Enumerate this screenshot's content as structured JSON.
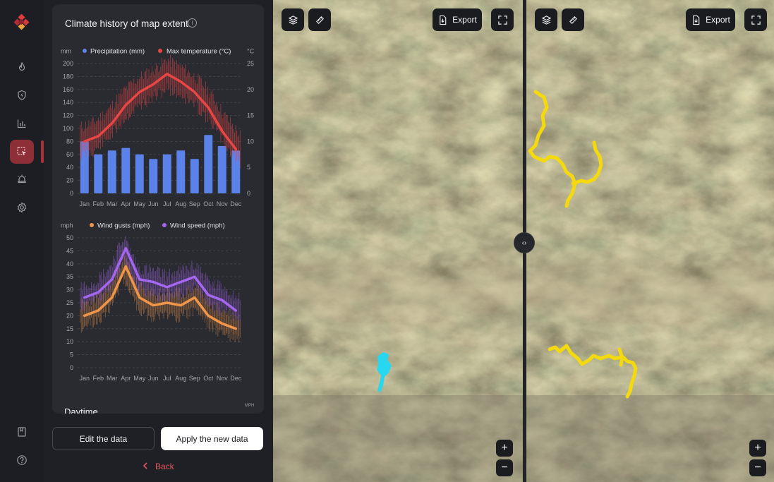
{
  "panel": {
    "title": "Climate history of map extent",
    "info_icon": "info-icon",
    "next_section_title": "Daytime",
    "next_section_unit": "MPH"
  },
  "nav": {
    "logo": "brand-logo",
    "items": [
      {
        "name": "fire-icon",
        "active": false
      },
      {
        "name": "shield-bolt-icon",
        "active": false
      },
      {
        "name": "bar-chart-icon",
        "active": false
      },
      {
        "name": "select-area-icon",
        "active": true
      },
      {
        "name": "alarm-icon",
        "active": false
      },
      {
        "name": "gear-icon",
        "active": false
      }
    ],
    "bottom": [
      {
        "name": "bookmark-icon"
      },
      {
        "name": "help-icon"
      }
    ]
  },
  "buttons": {
    "edit": "Edit the data",
    "apply": "Apply the new data",
    "back": "Back"
  },
  "map": {
    "export_label": "Export",
    "zoom_in": "+",
    "zoom_out": "−",
    "swap_label": "‹›",
    "left_perimeter_color": "#22d3ee",
    "right_perimeter_color": "#f4d90f"
  },
  "colors": {
    "accent": "#8e2e36",
    "precipitation": "#5b82e8",
    "max_temp": "#e84545",
    "wind_gusts": "#f0964a",
    "wind_speed": "#a566f0"
  },
  "chart_data": [
    {
      "type": "bar",
      "categories": [
        "Jan",
        "Feb",
        "Mar",
        "Apr",
        "May",
        "Jun",
        "Jul",
        "Aug",
        "Sep",
        "Oct",
        "Nov",
        "Dec"
      ],
      "y_unit_left": "mm",
      "y_unit_right": "°C",
      "ylim": [
        0,
        200
      ],
      "yticks": [
        0,
        20,
        40,
        60,
        80,
        100,
        120,
        140,
        160,
        180,
        200
      ],
      "y2lim": [
        0,
        25
      ],
      "y2ticks": [
        0,
        5,
        10,
        15,
        20,
        25
      ],
      "series": [
        {
          "name": "Precipitation (mm)",
          "kind": "bar",
          "axis": "left",
          "values": [
            80,
            60,
            66,
            70,
            60,
            53,
            60,
            66,
            53,
            90,
            73,
            66
          ]
        },
        {
          "name": "Max temperature (°C)",
          "kind": "line",
          "axis": "right",
          "values": [
            10,
            11,
            13.5,
            17,
            19.5,
            21,
            23,
            21.5,
            19.5,
            16.5,
            12,
            8.5
          ]
        }
      ],
      "grid": true,
      "legend": "top"
    },
    {
      "type": "line",
      "categories": [
        "Jan",
        "Feb",
        "Mar",
        "Apr",
        "May",
        "Jun",
        "Jul",
        "Aug",
        "Sep",
        "Oct",
        "Nov",
        "Dec"
      ],
      "y_unit_left": "mph",
      "ylim": [
        0,
        50
      ],
      "yticks": [
        0,
        5,
        10,
        15,
        20,
        25,
        30,
        35,
        40,
        45,
        50
      ],
      "series": [
        {
          "name": "Wind gusts (mph)",
          "values": [
            20,
            22,
            27,
            39,
            27,
            24,
            25,
            24,
            27,
            20,
            17,
            15
          ]
        },
        {
          "name": "Wind speed (mph)",
          "values": [
            27,
            29,
            34,
            46,
            34,
            33,
            31,
            33,
            35,
            28,
            26,
            22
          ]
        }
      ],
      "grid": true,
      "legend": "top"
    }
  ]
}
